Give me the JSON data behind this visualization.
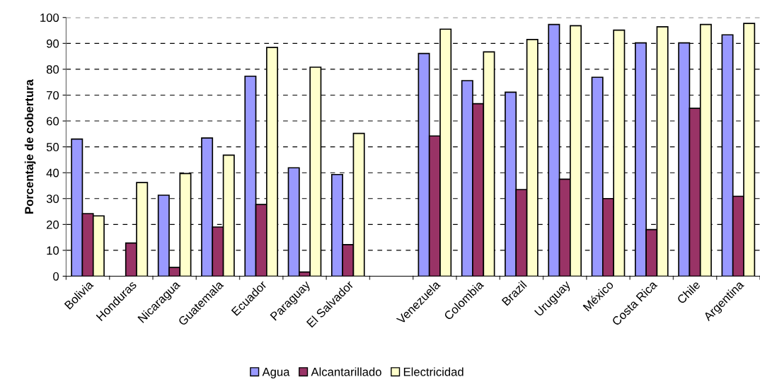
{
  "chart_data": {
    "type": "bar",
    "ylabel": "Porcentaje de cobertura",
    "categories": [
      "Bolivia",
      "Honduras",
      "Nicaragua",
      "Guatemala",
      "Ecuador",
      "Paraguay",
      "El Salvador",
      null,
      "Venezuela",
      "Colombia",
      "Brazil",
      "Uruguay",
      "México",
      "Costa Rica",
      "Chile",
      "Argentina"
    ],
    "series": [
      {
        "name": "Agua",
        "color": "#9999ff",
        "values": [
          53,
          null,
          31.3,
          53.4,
          77.3,
          41.9,
          39.3,
          null,
          86.1,
          75.6,
          71.1,
          97.3,
          76.9,
          90.2,
          90.2,
          93.3
        ]
      },
      {
        "name": "Alcantarillado",
        "color": "#993366",
        "values": [
          24.2,
          12.8,
          3.4,
          19.0,
          27.7,
          1.6,
          12.2,
          null,
          54.2,
          66.7,
          33.5,
          37.5,
          30.0,
          18.0,
          64.9,
          30.9
        ]
      },
      {
        "name": "Electricidad",
        "color": "#ffffcc",
        "values": [
          23.3,
          36.2,
          39.7,
          46.8,
          88.4,
          80.8,
          55.2,
          null,
          95.5,
          86.7,
          91.5,
          96.8,
          95.1,
          96.4,
          97.3,
          97.7
        ]
      }
    ],
    "ylim": [
      0,
      100
    ],
    "yticks": [
      0,
      10,
      20,
      30,
      40,
      50,
      60,
      70,
      80,
      90,
      100
    ],
    "grid": "y",
    "legend": "bottom"
  }
}
